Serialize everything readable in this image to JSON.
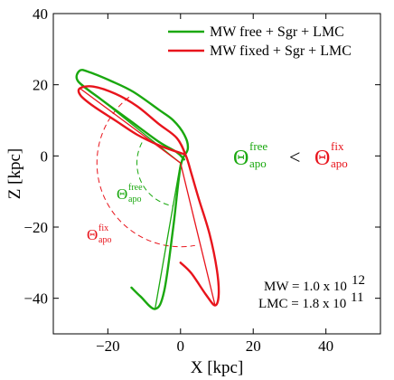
{
  "chart_data": {
    "type": "line",
    "xlabel": "X [kpc]",
    "ylabel": "Z [kpc]",
    "xlim": [
      -35,
      55
    ],
    "ylim": [
      -50,
      40
    ],
    "xticks": [
      -20,
      0,
      20,
      40
    ],
    "yticks": [
      -40,
      -20,
      0,
      20,
      40
    ],
    "xtick_labels": [
      "−20",
      "0",
      "20",
      "40"
    ],
    "ytick_labels": [
      "−40",
      "−20",
      "0",
      "20",
      "40"
    ],
    "grid": false,
    "legend_position": "top-right",
    "colors": {
      "free": "#1aa80f",
      "fixed": "#e8141c"
    },
    "series": [
      {
        "name": "MW free + Sgr + LMC",
        "color": "#1aa80f",
        "orbit": [
          [
            -13.5,
            -37
          ],
          [
            -11,
            -39.5
          ],
          [
            -7,
            -43
          ],
          [
            -4.5,
            -38
          ],
          [
            -2,
            -20
          ],
          [
            0,
            -3
          ],
          [
            2,
            2
          ],
          [
            1,
            6
          ],
          [
            -2,
            10
          ],
          [
            -6,
            13
          ],
          [
            -13,
            18
          ],
          [
            -19,
            21
          ],
          [
            -25,
            23.5
          ],
          [
            -27.7,
            24
          ],
          [
            -28.2,
            21
          ],
          [
            -22,
            16
          ],
          [
            -14,
            10
          ],
          [
            -6,
            4
          ],
          [
            -1,
            1
          ],
          [
            1,
            -1
          ]
        ],
        "radial_lines": [
          [
            [
              0,
              -2
            ],
            [
              -7,
              -43
            ]
          ],
          [
            [
              0,
              -2
            ],
            [
              -28.2,
              21
            ]
          ]
        ]
      },
      {
        "name": "MW fixed + Sgr + LMC",
        "color": "#e8141c",
        "orbit": [
          [
            0,
            -30
          ],
          [
            3,
            -33
          ],
          [
            7,
            -39
          ],
          [
            9.5,
            -42
          ],
          [
            10.5,
            -39
          ],
          [
            10,
            -32
          ],
          [
            8,
            -22
          ],
          [
            5,
            -12
          ],
          [
            3,
            -5
          ],
          [
            1.5,
            0
          ],
          [
            -1,
            5
          ],
          [
            -6,
            9
          ],
          [
            -12,
            14
          ],
          [
            -18,
            17.5
          ],
          [
            -24,
            19.5
          ],
          [
            -27.7,
            19
          ],
          [
            -27.5,
            17
          ],
          [
            -24,
            14
          ],
          [
            -18,
            10
          ],
          [
            -12,
            6
          ],
          [
            -6,
            3
          ],
          [
            -2,
            1.5
          ],
          [
            1,
            0.5
          ]
        ],
        "radial_lines": [
          [
            [
              0,
              -2
            ],
            [
              9.5,
              -42
            ]
          ],
          [
            [
              0,
              -2
            ],
            [
              -27.7,
              19
            ]
          ]
        ]
      }
    ],
    "arcs": [
      {
        "label_key": "free",
        "color": "#1aa80f",
        "center": [
          0,
          -2
        ],
        "radius": 12,
        "from_deg": 152,
        "to_deg": 260
      },
      {
        "label_key": "fixed",
        "color": "#e8141c",
        "center": [
          0,
          -2
        ],
        "radius": 23,
        "from_deg": 128,
        "to_deg": 280
      }
    ],
    "annotations": {
      "theta_symbol": "Θ",
      "theta_free_sub": "apo",
      "theta_free_sup": "free",
      "theta_fix_sub": "apo",
      "theta_fix_sup": "fix",
      "comparison_symbol": "<",
      "mw_text": "MW = 1.0 x 10",
      "mw_exp": "12",
      "lmc_text": "LMC = 1.8 x 10",
      "lmc_exp": "11"
    }
  }
}
